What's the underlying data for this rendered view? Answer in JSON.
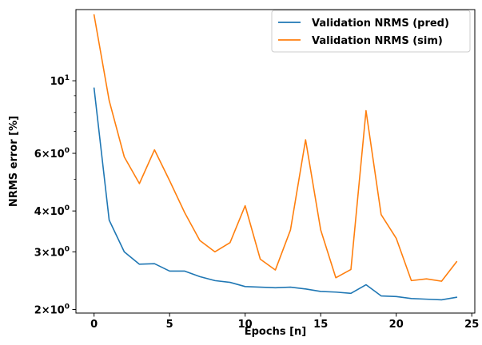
{
  "chart_data": {
    "type": "line",
    "title": "",
    "xlabel": "Epochs [n]",
    "ylabel": "NRMS error [%]",
    "xlim": [
      -1.2,
      25.2
    ],
    "ylim": [
      1.95,
      16.5
    ],
    "yscale": "log",
    "grid": false,
    "legend_position": "top-right",
    "x_ticks": [
      0,
      5,
      10,
      15,
      20,
      25
    ],
    "x_tick_labels": [
      "0",
      "5",
      "10",
      "15",
      "20",
      "25"
    ],
    "y_major_ticks": [
      {
        "value": 2,
        "mantissa": "2",
        "base": "10",
        "exp": "0"
      },
      {
        "value": 3,
        "mantissa": "3",
        "base": "10",
        "exp": "0"
      },
      {
        "value": 4,
        "mantissa": "4",
        "base": "10",
        "exp": "0"
      },
      {
        "value": 6,
        "mantissa": "6",
        "base": "10",
        "exp": "0"
      },
      {
        "value": 10,
        "mantissa": "",
        "base": "10",
        "exp": "1"
      }
    ],
    "y_minor_ticks": [
      5,
      7,
      8,
      9
    ],
    "x": [
      0,
      1,
      2,
      3,
      4,
      5,
      6,
      7,
      8,
      9,
      10,
      11,
      12,
      13,
      14,
      15,
      16,
      17,
      18,
      19,
      20,
      21,
      22,
      23,
      24
    ],
    "series": [
      {
        "name": "Validation NRMS (pred)",
        "color": "#1f77b4",
        "values": [
          9.5,
          3.75,
          3.0,
          2.75,
          2.76,
          2.62,
          2.62,
          2.52,
          2.45,
          2.42,
          2.35,
          2.34,
          2.33,
          2.34,
          2.31,
          2.27,
          2.26,
          2.24,
          2.38,
          2.2,
          2.19,
          2.16,
          2.15,
          2.14,
          2.18
        ]
      },
      {
        "name": "Validation NRMS (sim)",
        "color": "#ff7f0e",
        "values": [
          15.9,
          8.7,
          5.85,
          4.85,
          6.15,
          4.95,
          3.95,
          3.25,
          3.0,
          3.2,
          4.15,
          2.85,
          2.64,
          3.5,
          6.6,
          3.5,
          2.5,
          2.65,
          8.1,
          3.9,
          3.3,
          2.45,
          2.48,
          2.44,
          2.8
        ]
      }
    ]
  }
}
